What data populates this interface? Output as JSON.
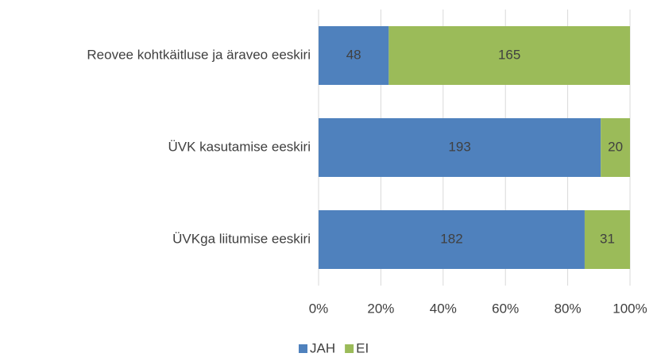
{
  "chart_data": {
    "type": "bar",
    "orientation": "horizontal",
    "stacking": "percent",
    "categories": [
      "Reovee kohtkäitluse ja äraveo eeskiri",
      "ÜVK kasutamise eeskiri",
      "ÜVKga liitumise eeskiri"
    ],
    "series": [
      {
        "name": "JAH",
        "color": "#4f81bd",
        "values": [
          48,
          193,
          182
        ]
      },
      {
        "name": "EI",
        "color": "#9bbb59",
        "values": [
          165,
          20,
          31
        ]
      }
    ],
    "xlim": [
      0,
      100
    ],
    "xticks": [
      {
        "value": 0,
        "label": "0%"
      },
      {
        "value": 20,
        "label": "20%"
      },
      {
        "value": 40,
        "label": "40%"
      },
      {
        "value": 60,
        "label": "60%"
      },
      {
        "value": 80,
        "label": "80%"
      },
      {
        "value": 100,
        "label": "100%"
      }
    ],
    "grid": true,
    "legend": "bottom"
  }
}
